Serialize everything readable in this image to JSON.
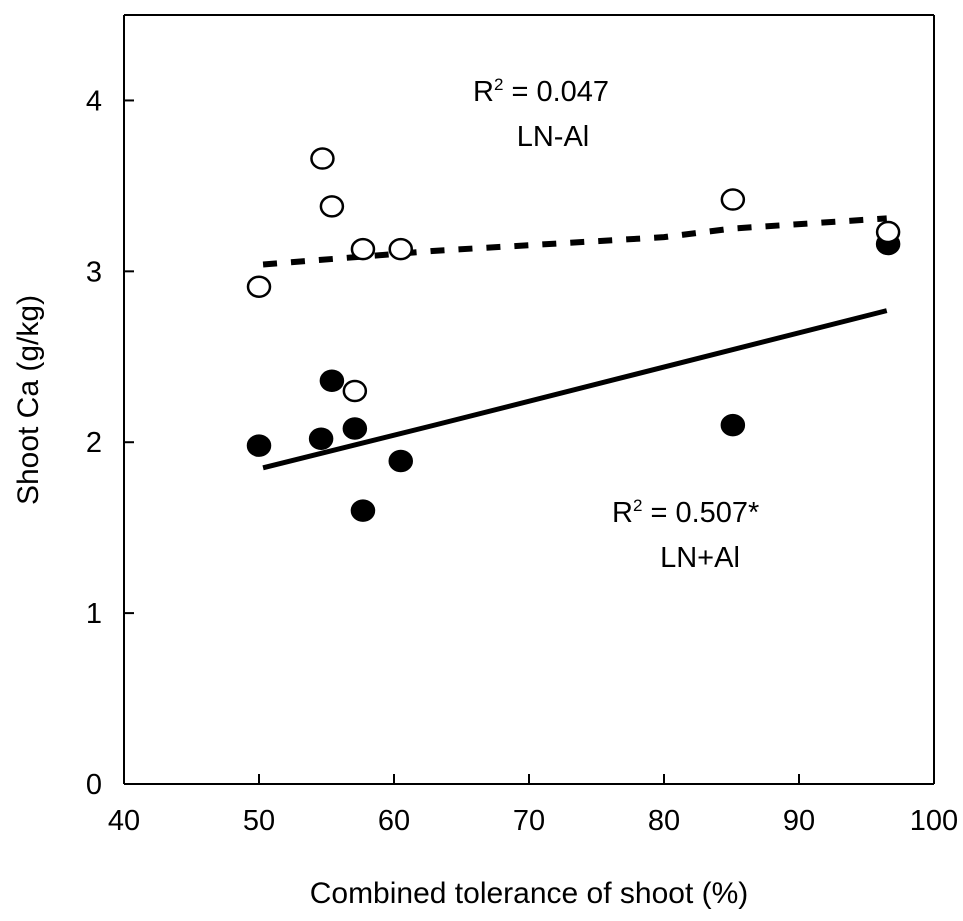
{
  "chart_data": {
    "type": "scatter",
    "xlabel": "Combined tolerance of shoot (%)",
    "ylabel": "Shoot Ca (g/kg)",
    "xlim": [
      40,
      100
    ],
    "ylim": [
      0,
      4.5
    ],
    "x_ticks": [
      40,
      50,
      60,
      70,
      80,
      90,
      100
    ],
    "y_ticks": [
      0,
      1,
      2,
      3,
      4
    ],
    "x_tick_labels": [
      "40",
      "50",
      "60",
      "70",
      "80",
      "90",
      "100"
    ],
    "y_tick_labels": [
      "0",
      "1",
      "2",
      "3",
      "4"
    ],
    "grid": false,
    "series": [
      {
        "name": "LN-Al",
        "marker": "open-circle",
        "points": [
          {
            "x": 50.0,
            "y": 2.91
          },
          {
            "x": 54.7,
            "y": 3.66
          },
          {
            "x": 55.4,
            "y": 3.38
          },
          {
            "x": 57.1,
            "y": 2.3
          },
          {
            "x": 57.7,
            "y": 3.13
          },
          {
            "x": 60.5,
            "y": 3.13
          },
          {
            "x": 85.1,
            "y": 3.42
          },
          {
            "x": 96.6,
            "y": 3.23
          }
        ],
        "trend": [
          {
            "x": 50.3,
            "y": 3.04
          },
          {
            "x": 63.0,
            "y": 3.12
          },
          {
            "x": 80.0,
            "y": 3.2
          },
          {
            "x": 85.0,
            "y": 3.25
          },
          {
            "x": 96.5,
            "y": 3.31
          }
        ],
        "trend_style": "dashed",
        "r2_text": "R",
        "r2_exp": "2",
        "r2_value": " = 0.047",
        "label": "LN-Al"
      },
      {
        "name": "LN+Al",
        "marker": "filled-circle",
        "points": [
          {
            "x": 50.0,
            "y": 1.98
          },
          {
            "x": 54.6,
            "y": 2.02
          },
          {
            "x": 55.4,
            "y": 2.36
          },
          {
            "x": 57.1,
            "y": 2.08
          },
          {
            "x": 57.7,
            "y": 1.6
          },
          {
            "x": 60.5,
            "y": 1.89
          },
          {
            "x": 85.1,
            "y": 2.1
          },
          {
            "x": 96.6,
            "y": 3.16
          }
        ],
        "trend": [
          {
            "x": 50.3,
            "y": 1.85
          },
          {
            "x": 63.0,
            "y": 2.1
          },
          {
            "x": 96.5,
            "y": 2.77
          }
        ],
        "trend_style": "solid",
        "r2_text": "R",
        "r2_exp": "2",
        "r2_value": " = 0.507*",
        "label": "LN+Al"
      }
    ],
    "colors": {
      "ink": "#000000",
      "background": "#ffffff"
    }
  }
}
